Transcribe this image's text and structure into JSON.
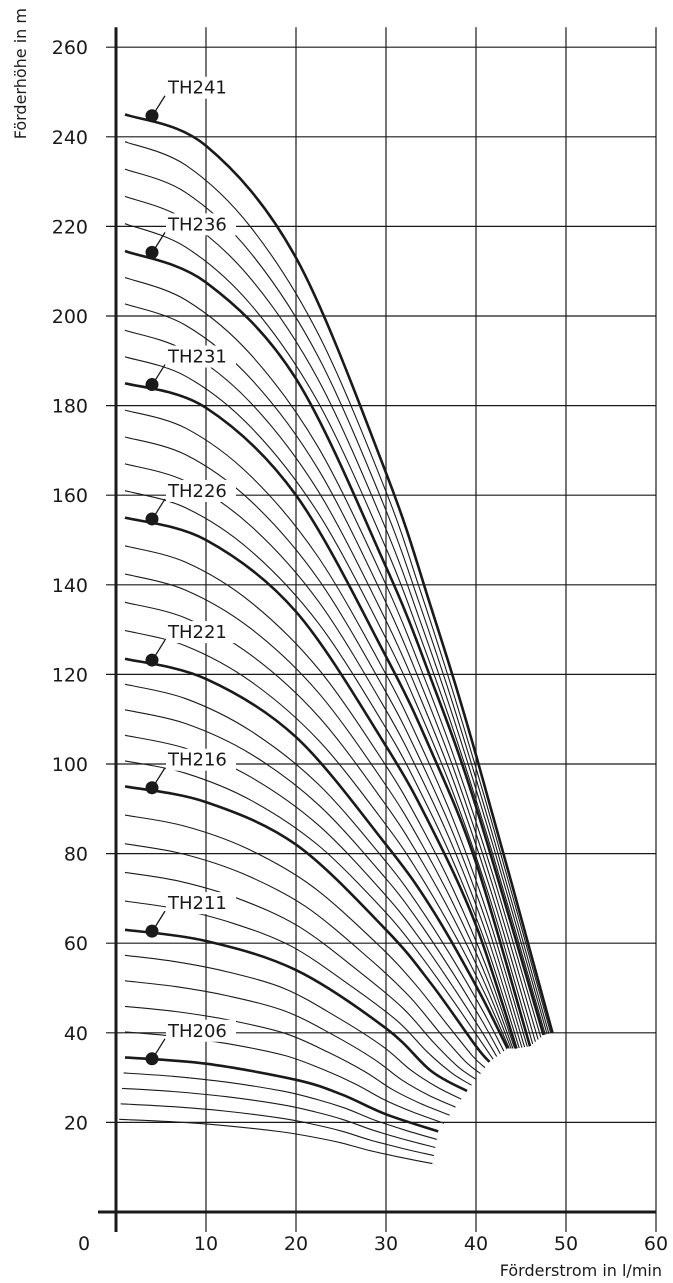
{
  "chart_data": {
    "type": "line",
    "title": "",
    "xlabel": "Förderstrom in l/min",
    "ylabel": "Förderhöhe in m",
    "xlim": [
      0,
      60
    ],
    "ylim": [
      0,
      260
    ],
    "xticks": [
      0,
      10,
      20,
      30,
      40,
      50,
      60
    ],
    "yticks": [
      20,
      40,
      60,
      80,
      100,
      120,
      140,
      160,
      180,
      200,
      220,
      240,
      260
    ],
    "grid": true,
    "colors": {
      "line": "#1a1a1a",
      "grid": "#1a1a1a",
      "background": "#ffffff"
    },
    "series": [
      {
        "name": "TH206",
        "values": [
          [
            1,
            34.5
          ],
          [
            10,
            33.1
          ],
          [
            20,
            29.5
          ],
          [
            25,
            26.3
          ],
          [
            30,
            21.8
          ],
          [
            35.8,
            18.0
          ]
        ]
      },
      {
        "name": "TH211",
        "values": [
          [
            1,
            63
          ],
          [
            10,
            60.5
          ],
          [
            20,
            54
          ],
          [
            30,
            41
          ],
          [
            35,
            31.5
          ],
          [
            39,
            27
          ]
        ]
      },
      {
        "name": "TH216",
        "values": [
          [
            1,
            95
          ],
          [
            10,
            91.5
          ],
          [
            20,
            82
          ],
          [
            30,
            63
          ],
          [
            35,
            51
          ],
          [
            40,
            37
          ],
          [
            41.5,
            33.5
          ]
        ]
      },
      {
        "name": "TH221",
        "values": [
          [
            1,
            123.5
          ],
          [
            10,
            119
          ],
          [
            20,
            106
          ],
          [
            30,
            82
          ],
          [
            35,
            68
          ],
          [
            40,
            50.5
          ],
          [
            43.5,
            36.5
          ]
        ]
      },
      {
        "name": "TH226",
        "values": [
          [
            1,
            155
          ],
          [
            10,
            150
          ],
          [
            20,
            134
          ],
          [
            30,
            104
          ],
          [
            35,
            86
          ],
          [
            40,
            64
          ],
          [
            44.5,
            36.5
          ]
        ]
      },
      {
        "name": "TH231",
        "values": [
          [
            1,
            185
          ],
          [
            10,
            179.5
          ],
          [
            20,
            160
          ],
          [
            30,
            124
          ],
          [
            35,
            103
          ],
          [
            40,
            78
          ],
          [
            46,
            37
          ]
        ]
      },
      {
        "name": "TH236",
        "values": [
          [
            1,
            214.5
          ],
          [
            10,
            207.5
          ],
          [
            20,
            186
          ],
          [
            30,
            144
          ],
          [
            35,
            119
          ],
          [
            40,
            90.5
          ],
          [
            47.5,
            39.5
          ]
        ]
      },
      {
        "name": "TH241",
        "values": [
          [
            1,
            245
          ],
          [
            10,
            238
          ],
          [
            20,
            213
          ],
          [
            30,
            165
          ],
          [
            35,
            135
          ],
          [
            40,
            102
          ],
          [
            48.5,
            40
          ]
        ]
      }
    ]
  }
}
